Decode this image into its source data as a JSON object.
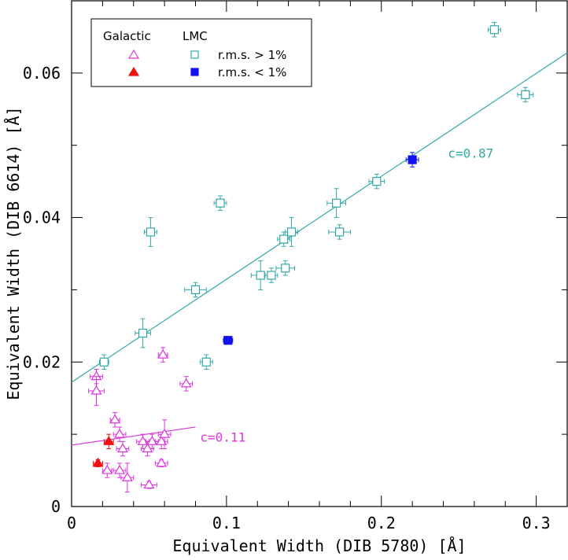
{
  "chart_data": {
    "type": "scatter",
    "xlabel": "Equivalent Width (DIB 5780) [Å]",
    "ylabel": "Equivalent Width (DIB 6614) [Å]",
    "xlim": [
      0,
      0.32
    ],
    "ylim": [
      0,
      0.07
    ],
    "x_ticks": [
      {
        "value": 0,
        "label": "0"
      },
      {
        "value": 0.1,
        "label": "0.1"
      },
      {
        "value": 0.2,
        "label": "0.2"
      },
      {
        "value": 0.3,
        "label": "0.3"
      }
    ],
    "y_ticks": [
      {
        "value": 0,
        "label": "0"
      },
      {
        "value": 0.02,
        "label": "0.02"
      },
      {
        "value": 0.04,
        "label": "0.04"
      },
      {
        "value": 0.06,
        "label": "0.06"
      }
    ],
    "legend": {
      "position": "top-left",
      "galactic_header": "Galactic",
      "lmc_header": "LMC",
      "rms_high": "r.m.s. > 1%",
      "rms_low": "r.m.s. < 1%"
    },
    "colors": {
      "galactic": "#dd33dd",
      "galactic_fill": "#ee1111",
      "lmc": "#33a8a8",
      "lmc_fill": "#1111ee"
    },
    "fits": [
      {
        "name": "LMC fit",
        "label": "c=0.87",
        "x0": 0,
        "y0": 0.0172,
        "x1": 0.32,
        "y1": 0.0628,
        "label_x": 0.243,
        "label_y": 0.0488,
        "color": "#33a8a8"
      },
      {
        "name": "Galactic fit",
        "label": "c=0.11",
        "x0": 0,
        "y0": 0.0085,
        "x1": 0.08,
        "y1": 0.011,
        "label_x": 0.083,
        "label_y": 0.0095,
        "color": "#dd33dd"
      }
    ],
    "series": [
      {
        "name": "Galactic r.m.s. > 1%",
        "marker": "open-triangle",
        "color": "#dd33dd",
        "points": [
          {
            "x": 0.016,
            "y": 0.018,
            "ex": 0.004,
            "ey": 0.001
          },
          {
            "x": 0.016,
            "y": 0.016,
            "ex": 0.005,
            "ey": 0.002
          },
          {
            "x": 0.028,
            "y": 0.012,
            "ex": 0.003,
            "ey": 0.001
          },
          {
            "x": 0.031,
            "y": 0.01,
            "ex": 0.004,
            "ey": 0.001
          },
          {
            "x": 0.033,
            "y": 0.008,
            "ex": 0.004,
            "ey": 0.001
          },
          {
            "x": 0.023,
            "y": 0.005,
            "ex": 0.003,
            "ey": 0.001
          },
          {
            "x": 0.031,
            "y": 0.005,
            "ex": 0.004,
            "ey": 0.001
          },
          {
            "x": 0.036,
            "y": 0.004,
            "ex": 0.004,
            "ey": 0.002
          },
          {
            "x": 0.046,
            "y": 0.009,
            "ex": 0.004,
            "ey": 0.001
          },
          {
            "x": 0.049,
            "y": 0.008,
            "ex": 0.004,
            "ey": 0.001
          },
          {
            "x": 0.052,
            "y": 0.009,
            "ex": 0.004,
            "ey": 0.001
          },
          {
            "x": 0.058,
            "y": 0.009,
            "ex": 0.004,
            "ey": 0.001
          },
          {
            "x": 0.06,
            "y": 0.01,
            "ex": 0.004,
            "ey": 0.002
          },
          {
            "x": 0.058,
            "y": 0.006,
            "ex": 0.004,
            "ey": 0.0005
          },
          {
            "x": 0.05,
            "y": 0.003,
            "ex": 0.005,
            "ey": 0.0005
          },
          {
            "x": 0.059,
            "y": 0.021,
            "ex": 0.003,
            "ey": 0.001
          },
          {
            "x": 0.074,
            "y": 0.017,
            "ex": 0.004,
            "ey": 0.001
          }
        ]
      },
      {
        "name": "Galactic r.m.s. < 1%",
        "marker": "filled-triangle",
        "color": "#ee1111",
        "points": [
          {
            "x": 0.017,
            "y": 0.006,
            "ex": 0.003,
            "ey": 0.0005
          },
          {
            "x": 0.024,
            "y": 0.009,
            "ex": 0.003,
            "ey": 0.001
          }
        ]
      },
      {
        "name": "LMC r.m.s. > 1%",
        "marker": "open-square",
        "color": "#33a8a8",
        "points": [
          {
            "x": 0.021,
            "y": 0.02,
            "ex": 0.003,
            "ey": 0.001
          },
          {
            "x": 0.046,
            "y": 0.024,
            "ex": 0.005,
            "ey": 0.002
          },
          {
            "x": 0.051,
            "y": 0.038,
            "ex": 0.004,
            "ey": 0.002
          },
          {
            "x": 0.08,
            "y": 0.03,
            "ex": 0.007,
            "ey": 0.001
          },
          {
            "x": 0.087,
            "y": 0.02,
            "ex": 0.004,
            "ey": 0.001
          },
          {
            "x": 0.096,
            "y": 0.042,
            "ex": 0.004,
            "ey": 0.001
          },
          {
            "x": 0.122,
            "y": 0.032,
            "ex": 0.006,
            "ey": 0.002
          },
          {
            "x": 0.129,
            "y": 0.032,
            "ex": 0.004,
            "ey": 0.001
          },
          {
            "x": 0.137,
            "y": 0.037,
            "ex": 0.004,
            "ey": 0.001
          },
          {
            "x": 0.138,
            "y": 0.033,
            "ex": 0.006,
            "ey": 0.001
          },
          {
            "x": 0.142,
            "y": 0.038,
            "ex": 0.004,
            "ey": 0.002
          },
          {
            "x": 0.171,
            "y": 0.042,
            "ex": 0.006,
            "ey": 0.002
          },
          {
            "x": 0.173,
            "y": 0.038,
            "ex": 0.007,
            "ey": 0.001
          },
          {
            "x": 0.197,
            "y": 0.045,
            "ex": 0.005,
            "ey": 0.001
          },
          {
            "x": 0.273,
            "y": 0.066,
            "ex": 0.004,
            "ey": 0.001
          },
          {
            "x": 0.293,
            "y": 0.057,
            "ex": 0.005,
            "ey": 0.001
          }
        ]
      },
      {
        "name": "LMC r.m.s. < 1%",
        "marker": "filled-square",
        "color": "#1111ee",
        "points": [
          {
            "x": 0.101,
            "y": 0.023,
            "ex": 0.003,
            "ey": 0.0004
          },
          {
            "x": 0.22,
            "y": 0.048,
            "ex": 0.004,
            "ey": 0.001
          }
        ]
      }
    ]
  }
}
